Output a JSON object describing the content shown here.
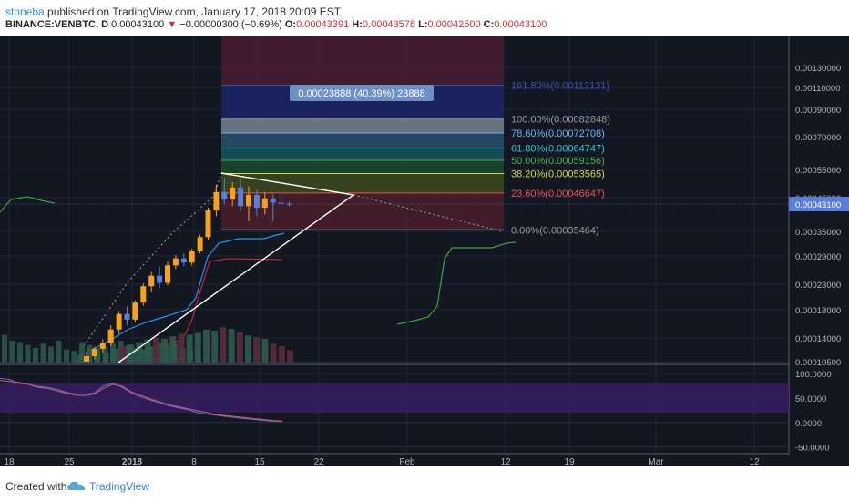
{
  "header": {
    "author": "stoneba",
    "published_text": "published on TradingView.com, January 17, 2018 20:09 EST",
    "symbol": "BINANCE:VENBTC, D",
    "last": "0.00043100",
    "change": "−0.00000300 (−0.69%)",
    "open_label": "O:",
    "open": "0.00043391",
    "high_label": "H:",
    "high": "0.00043578",
    "low_label": "L:",
    "low": "0.00042500",
    "close_label": "C:",
    "close": "0.00043100"
  },
  "footer": {
    "created_with": "Created with",
    "brand": "TradingView"
  },
  "colors": {
    "bg": "#131722",
    "up": "#f7a21b",
    "down": "#5b7fd6",
    "fib_border": "#787b86"
  },
  "chart_data": [
    {
      "type": "candlestick",
      "title": "",
      "x_tick_labels": [
        "18",
        "25",
        "2018",
        "8",
        "15",
        "22",
        "Feb",
        "12",
        "19",
        "Mar",
        "12"
      ],
      "y_tick_labels": [
        "0.00130000",
        "0.00110000",
        "0.00090000",
        "0.00070000",
        "0.00055000",
        "0.00045000",
        "0.00035000",
        "0.00029000",
        "0.00023000",
        "0.00018000",
        "0.00014000",
        "0.00010500"
      ],
      "price_tag": "0.00043100",
      "measure_label": "0.00023888 (40.39%) 23888",
      "candles": [
        {
          "o": 0.000105,
          "h": 0.000118,
          "l": 0.000102,
          "c": 0.000113
        },
        {
          "o": 0.000113,
          "h": 0.000127,
          "l": 0.000108,
          "c": 0.000124
        },
        {
          "o": 0.000124,
          "h": 0.000138,
          "l": 0.000118,
          "c": 0.000133
        },
        {
          "o": 0.000133,
          "h": 0.000158,
          "l": 0.000128,
          "c": 0.000152
        },
        {
          "o": 0.000152,
          "h": 0.000178,
          "l": 0.000146,
          "c": 0.000174
        },
        {
          "o": 0.000174,
          "h": 0.000186,
          "l": 0.000158,
          "c": 0.000166
        },
        {
          "o": 0.000166,
          "h": 0.000198,
          "l": 0.000162,
          "c": 0.000194
        },
        {
          "o": 0.000194,
          "h": 0.000232,
          "l": 0.000188,
          "c": 0.000226
        },
        {
          "o": 0.000226,
          "h": 0.000256,
          "l": 0.000214,
          "c": 0.000248
        },
        {
          "o": 0.000248,
          "h": 0.000268,
          "l": 0.000222,
          "c": 0.000233
        },
        {
          "o": 0.000233,
          "h": 0.000278,
          "l": 0.000228,
          "c": 0.00027
        },
        {
          "o": 0.00027,
          "h": 0.000292,
          "l": 0.000262,
          "c": 0.000285
        },
        {
          "o": 0.000285,
          "h": 0.000296,
          "l": 0.000268,
          "c": 0.000276
        },
        {
          "o": 0.000276,
          "h": 0.000308,
          "l": 0.00027,
          "c": 0.000302
        },
        {
          "o": 0.000302,
          "h": 0.000342,
          "l": 0.000296,
          "c": 0.000336
        },
        {
          "o": 0.000336,
          "h": 0.00042,
          "l": 0.000328,
          "c": 0.000412
        },
        {
          "o": 0.000412,
          "h": 0.000496,
          "l": 0.000395,
          "c": 0.00047
        },
        {
          "o": 0.00047,
          "h": 0.00052,
          "l": 0.00043,
          "c": 0.000445
        },
        {
          "o": 0.000445,
          "h": 0.000505,
          "l": 0.000425,
          "c": 0.000486
        },
        {
          "o": 0.000486,
          "h": 0.00052,
          "l": 0.00041,
          "c": 0.000425
        },
        {
          "o": 0.000425,
          "h": 0.00049,
          "l": 0.00038,
          "c": 0.00046
        },
        {
          "o": 0.00046,
          "h": 0.00048,
          "l": 0.000395,
          "c": 0.00042
        },
        {
          "o": 0.00042,
          "h": 0.00047,
          "l": 0.0004,
          "c": 0.000448
        },
        {
          "o": 0.000448,
          "h": 0.000462,
          "l": 0.00038,
          "c": 0.000435
        },
        {
          "o": 0.000435,
          "h": 0.000468,
          "l": 0.00041,
          "c": 0.000432
        },
        {
          "o": 0.000432,
          "h": 0.000438,
          "l": 0.000425,
          "c": 0.000431
        }
      ],
      "fib_levels": [
        {
          "label": "161.80%(0.00112131)",
          "price": 0.00112131,
          "color": "#3f51b5"
        },
        {
          "label": "100.00%(0.00082848)",
          "price": 0.00082848,
          "color": "#9598a1"
        },
        {
          "label": "78.60%(0.00072708)",
          "price": 0.00072708,
          "color": "#64b5f6"
        },
        {
          "label": "61.80%(0.00064747)",
          "price": 0.00064747,
          "color": "#26c6da"
        },
        {
          "label": "50.00%(0.00059156)",
          "price": 0.00059156,
          "color": "#4caf50"
        },
        {
          "label": "38.20%(0.00053565)",
          "price": 0.00053565,
          "color": "#cddc39"
        },
        {
          "label": "23.60%(0.00046647)",
          "price": 0.00046647,
          "color": "#ef5350"
        },
        {
          "label": "0.00%(0.00035464)",
          "price": 0.00035464,
          "color": "#9598a1"
        }
      ]
    },
    {
      "type": "line",
      "title": "",
      "y_tick_labels": [
        "100.0000",
        "50.0000",
        "0.0000",
        "-50.0000"
      ],
      "ylim": [
        -60,
        115
      ],
      "band": [
        20,
        80
      ],
      "series": [
        {
          "values": [
            90,
            88,
            80,
            78,
            74,
            72,
            68,
            62,
            58,
            58,
            60,
            75,
            80,
            72,
            60,
            52,
            46,
            40,
            34,
            30,
            26,
            20,
            17,
            15,
            12,
            10,
            8,
            6,
            4,
            3,
            2
          ],
          "color": "#4f7bd6"
        },
        {
          "values": [
            86,
            84,
            82,
            78,
            72,
            70,
            65,
            60,
            56,
            55,
            58,
            70,
            78,
            74,
            62,
            55,
            48,
            42,
            36,
            32,
            28,
            24,
            20,
            16,
            14,
            12,
            10,
            8,
            6,
            4,
            3
          ],
          "color": "#e25567"
        }
      ]
    }
  ]
}
